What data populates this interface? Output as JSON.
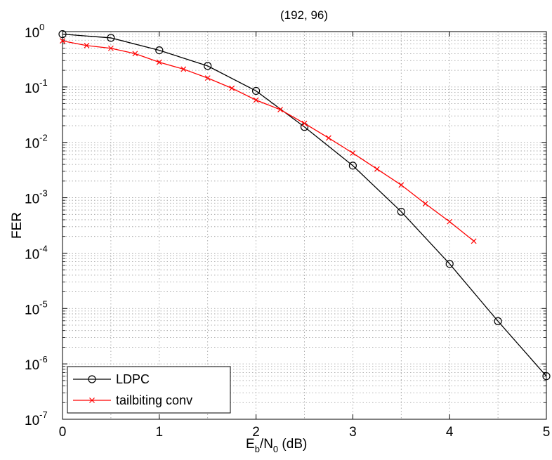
{
  "chart_data": {
    "type": "line",
    "title": "(192, 96)",
    "xlabel": {
      "main": "E",
      "sub1": "b",
      "mid": "/N",
      "sub2": "0",
      "tail": " (dB)"
    },
    "ylabel": "FER",
    "xlim": [
      0,
      5
    ],
    "ylim": [
      1e-07,
      1
    ],
    "yscale": "log",
    "grid": true,
    "legend_position": "bottom-left",
    "x_ticks": [
      "0",
      "1",
      "2",
      "3",
      "4",
      "5"
    ],
    "y_ticks": [
      {
        "base": "10",
        "exp": "0"
      },
      {
        "base": "10",
        "exp": "-1"
      },
      {
        "base": "10",
        "exp": "-2"
      },
      {
        "base": "10",
        "exp": "-3"
      },
      {
        "base": "10",
        "exp": "-4"
      },
      {
        "base": "10",
        "exp": "-5"
      },
      {
        "base": "10",
        "exp": "-6"
      },
      {
        "base": "10",
        "exp": "-7"
      }
    ],
    "series": [
      {
        "name": "LDPC",
        "color": "#000000",
        "marker": "circle",
        "x": [
          0,
          0.5,
          1.0,
          1.5,
          2.0,
          2.5,
          3.0,
          3.5,
          4.0,
          4.5,
          5.0
        ],
        "y": [
          0.9,
          0.77,
          0.46,
          0.24,
          0.085,
          0.019,
          0.0038,
          0.00056,
          6.4e-05,
          5.9e-06,
          6e-07
        ]
      },
      {
        "name": "tailbiting conv",
        "color": "#ff0000",
        "marker": "x",
        "x": [
          0,
          0.25,
          0.5,
          0.75,
          1.0,
          1.25,
          1.5,
          1.75,
          2.0,
          2.25,
          2.5,
          2.75,
          3.0,
          3.25,
          3.5,
          3.75,
          4.0,
          4.25
        ],
        "y": [
          0.68,
          0.56,
          0.5,
          0.4,
          0.28,
          0.21,
          0.145,
          0.095,
          0.058,
          0.039,
          0.022,
          0.012,
          0.0064,
          0.0033,
          0.0017,
          0.00078,
          0.00037,
          0.000165
        ]
      }
    ]
  }
}
